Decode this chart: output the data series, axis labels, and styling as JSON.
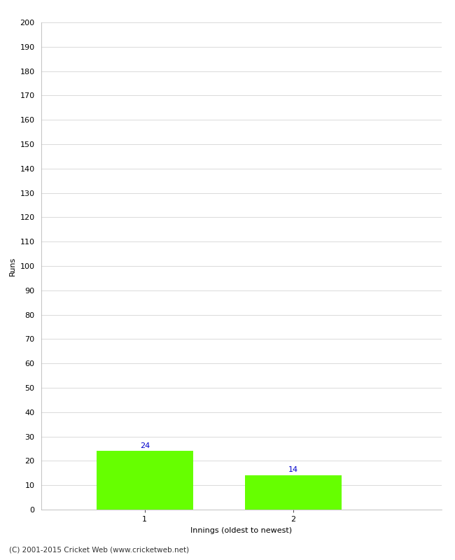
{
  "categories": [
    "1",
    "2"
  ],
  "values": [
    24,
    14
  ],
  "bar_color": "#66ff00",
  "bar_edge_color": "none",
  "title": "",
  "xlabel": "Innings (oldest to newest)",
  "ylabel": "Runs",
  "ylim": [
    0,
    200
  ],
  "yticks": [
    0,
    10,
    20,
    30,
    40,
    50,
    60,
    70,
    80,
    90,
    100,
    110,
    120,
    130,
    140,
    150,
    160,
    170,
    180,
    190,
    200
  ],
  "background_color": "#ffffff",
  "grid_color": "#cccccc",
  "annotation_color": "#0000cc",
  "footer": "(C) 2001-2015 Cricket Web (www.cricketweb.net)",
  "bar_width": 0.65,
  "x_positions": [
    1,
    2
  ],
  "xlim": [
    0.3,
    3.0
  ]
}
